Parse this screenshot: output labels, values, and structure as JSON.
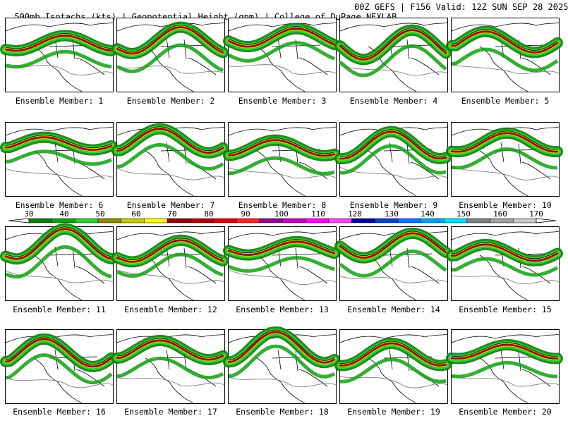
{
  "title": {
    "left": "500mb Isotachs (kts) | Geopotential Height (gpm) | College of DuPage NEXLAB",
    "right": "00Z GEFS | F156 Valid: 12Z SUN SEP 28 2025"
  },
  "colorbar": {
    "labels": [
      "30",
      "40",
      "50",
      "60",
      "70",
      "80",
      "90",
      "100",
      "110",
      "120",
      "130",
      "140",
      "150",
      "160",
      "170"
    ],
    "colors": [
      "#0a7d0a",
      "#10a010",
      "#2ed02e",
      "#8b8b00",
      "#c8c800",
      "#ffff00",
      "#8b0000",
      "#b00000",
      "#d80000",
      "#ff2020",
      "#900090",
      "#c000c0",
      "#ff00ff",
      "#ff40ff",
      "#0000a0",
      "#0040d0",
      "#0070ff",
      "#00a0ff",
      "#00e0ff",
      "#808080",
      "#a0a0a0",
      "#c8c8c8"
    ]
  },
  "members": [
    {
      "label": "Ensemble Member: 1"
    },
    {
      "label": "Ensemble Member: 2"
    },
    {
      "label": "Ensemble Member: 3"
    },
    {
      "label": "Ensemble Member: 4"
    },
    {
      "label": "Ensemble Member: 5"
    },
    {
      "label": "Ensemble Member: 6"
    },
    {
      "label": "Ensemble Member: 7"
    },
    {
      "label": "Ensemble Member: 8"
    },
    {
      "label": "Ensemble Member: 9"
    },
    {
      "label": "Ensemble Member: 10"
    },
    {
      "label": "Ensemble Member: 11"
    },
    {
      "label": "Ensemble Member: 12"
    },
    {
      "label": "Ensemble Member: 13"
    },
    {
      "label": "Ensemble Member: 14"
    },
    {
      "label": "Ensemble Member: 15"
    },
    {
      "label": "Ensemble Member: 16"
    },
    {
      "label": "Ensemble Member: 17"
    },
    {
      "label": "Ensemble Member: 18"
    },
    {
      "label": "Ensemble Member: 19"
    },
    {
      "label": "Ensemble Member: 20"
    }
  ]
}
